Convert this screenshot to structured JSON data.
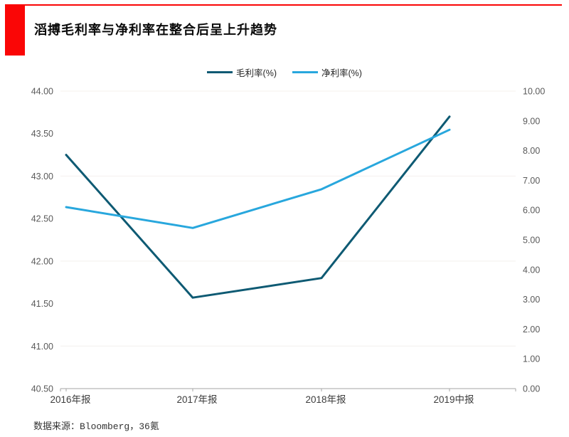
{
  "header": {
    "title": "滔搏毛利率与净利率在整合后呈上升趋势",
    "accent_color": "#fa0606"
  },
  "footer": {
    "source": "数据来源：Bloomberg，36氪"
  },
  "chart_data": {
    "type": "line",
    "title": "滔搏毛利率与净利率在整合后呈上升趋势",
    "categories": [
      "2016年报",
      "2017年报",
      "2018年报",
      "2019中报"
    ],
    "series": [
      {
        "name": "毛利率(%)",
        "axis": "left",
        "color": "#0e5a73",
        "values": [
          43.25,
          41.57,
          41.8,
          43.7
        ]
      },
      {
        "name": "净利率(%)",
        "axis": "right",
        "color": "#28a7dd",
        "values": [
          6.1,
          5.4,
          6.7,
          8.7
        ]
      }
    ],
    "left_axis": {
      "min": 40.5,
      "max": 44.0,
      "step": 0.5,
      "ticks": [
        "44.00",
        "43.50",
        "43.00",
        "42.50",
        "42.00",
        "41.50",
        "41.00",
        "40.50"
      ]
    },
    "right_axis": {
      "min": 0.0,
      "max": 10.0,
      "step": 1.0,
      "ticks": [
        "10.00",
        "9.00",
        "8.00",
        "7.00",
        "6.00",
        "5.00",
        "4.00",
        "3.00",
        "2.00",
        "1.00",
        "0.00"
      ]
    },
    "grid": true,
    "legend_position": "top-center",
    "colors": {
      "axis_line": "#a6a6a6",
      "tick_text": "#595959",
      "xlabel_text": "#3d3d3d",
      "gridline": "#f4f0ee"
    }
  }
}
